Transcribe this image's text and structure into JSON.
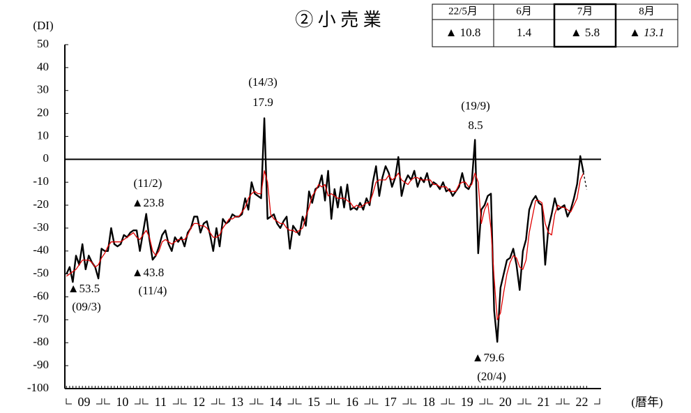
{
  "chart_data": {
    "type": "line",
    "title": "② 小 売 業",
    "y_label": "(DI)",
    "x_label": "(暦年)",
    "ylim": [
      -100,
      50
    ],
    "yticks": [
      50,
      40,
      30,
      20,
      10,
      0,
      -10,
      -20,
      -30,
      -40,
      -50,
      -60,
      -70,
      -80,
      -90,
      -100
    ],
    "reference_line": 0,
    "year_labels": [
      "09",
      "10",
      "11",
      "12",
      "13",
      "14",
      "15",
      "16",
      "17",
      "18",
      "19",
      "20",
      "21",
      "22"
    ],
    "x": [
      "09/1",
      "09/2",
      "09/3",
      "09/4",
      "09/5",
      "09/6",
      "09/7",
      "09/8",
      "09/9",
      "09/10",
      "09/11",
      "09/12",
      "10/1",
      "10/2",
      "10/3",
      "10/4",
      "10/5",
      "10/6",
      "10/7",
      "10/8",
      "10/9",
      "10/10",
      "10/11",
      "10/12",
      "11/1",
      "11/2",
      "11/3",
      "11/4",
      "11/5",
      "11/6",
      "11/7",
      "11/8",
      "11/9",
      "11/10",
      "11/11",
      "11/12",
      "12/1",
      "12/2",
      "12/3",
      "12/4",
      "12/5",
      "12/6",
      "12/7",
      "12/8",
      "12/9",
      "12/10",
      "12/11",
      "12/12",
      "13/1",
      "13/2",
      "13/3",
      "13/4",
      "13/5",
      "13/6",
      "13/7",
      "13/8",
      "13/9",
      "13/10",
      "13/11",
      "13/12",
      "14/1",
      "14/2",
      "14/3",
      "14/4",
      "14/5",
      "14/6",
      "14/7",
      "14/8",
      "14/9",
      "14/10",
      "14/11",
      "14/12",
      "15/1",
      "15/2",
      "15/3",
      "15/4",
      "15/5",
      "15/6",
      "15/7",
      "15/8",
      "15/9",
      "15/10",
      "15/11",
      "15/12",
      "16/1",
      "16/2",
      "16/3",
      "16/4",
      "16/5",
      "16/6",
      "16/7",
      "16/8",
      "16/9",
      "16/10",
      "16/11",
      "16/12",
      "17/1",
      "17/2",
      "17/3",
      "17/4",
      "17/5",
      "17/6",
      "17/7",
      "17/8",
      "17/9",
      "17/10",
      "17/11",
      "17/12",
      "18/1",
      "18/2",
      "18/3",
      "18/4",
      "18/5",
      "18/6",
      "18/7",
      "18/8",
      "18/9",
      "18/10",
      "18/11",
      "18/12",
      "19/1",
      "19/2",
      "19/3",
      "19/4",
      "19/5",
      "19/6",
      "19/7",
      "19/8",
      "19/9",
      "19/10",
      "19/11",
      "19/12",
      "20/1",
      "20/2",
      "20/3",
      "20/4",
      "20/5",
      "20/6",
      "20/7",
      "20/8",
      "20/9",
      "20/10",
      "20/11",
      "20/12",
      "21/1",
      "21/2",
      "21/3",
      "21/4",
      "21/5",
      "21/6",
      "21/7",
      "21/8",
      "21/9",
      "21/10",
      "21/11",
      "21/12",
      "22/1",
      "22/2",
      "22/3",
      "22/4",
      "22/5",
      "22/6",
      "22/7",
      "22/8"
    ],
    "series": [
      {
        "color": "#000000",
        "values": [
          -50,
          -47,
          -53.5,
          -42,
          -46,
          -37,
          -48,
          -42,
          -45,
          -47,
          -52,
          -39,
          -40,
          -40,
          -30,
          -37,
          -38,
          -37,
          -33,
          -34,
          -32,
          -31,
          -31,
          -40,
          -32,
          -23.8,
          -35,
          -43.8,
          -42,
          -38,
          -33,
          -31,
          -37,
          -40,
          -34,
          -36,
          -34,
          -38,
          -32,
          -30,
          -25,
          -25,
          -32,
          -28,
          -27,
          -33,
          -40,
          -30,
          -38,
          -26,
          -28,
          -27,
          -24,
          -25,
          -25,
          -24,
          -17,
          -22,
          -10,
          -15,
          -16,
          -17,
          17.9,
          -26,
          -25,
          -24,
          -28,
          -30,
          -27,
          -25,
          -39,
          -29,
          -31,
          -33,
          -25,
          -29,
          -14,
          -19,
          -13,
          -12,
          -7,
          -18,
          -5,
          -26,
          -13,
          -21,
          -12,
          -21,
          -11,
          -22,
          -21,
          -22,
          -19,
          -22,
          -17,
          -20,
          -10,
          -3,
          -16,
          -8,
          -3,
          -6,
          -12,
          -8,
          1,
          -16,
          -10,
          -7,
          -9,
          -5,
          -12,
          -8,
          -10,
          -6,
          -12,
          -10,
          -11,
          -13,
          -10,
          -14,
          -13,
          -16,
          -14,
          -12,
          -6,
          -12,
          -13,
          -10,
          8.5,
          -41,
          -22,
          -20,
          -16,
          -15,
          -66,
          -79.6,
          -56,
          -50,
          -44,
          -43,
          -39,
          -46,
          -57,
          -40,
          -35,
          -22,
          -18,
          -16,
          -19,
          -20,
          -46,
          -30,
          -24,
          -17,
          -22,
          -21,
          -20,
          -25,
          -22,
          -17,
          -10.8,
          1.4,
          -5.8,
          null
        ]
      },
      {
        "color": "#e00000",
        "values": [
          -51,
          -50,
          -49,
          -48,
          -46,
          -44,
          -44,
          -44,
          -45,
          -47,
          -46,
          -43,
          -41,
          -38,
          -36,
          -36,
          -36,
          -36,
          -35,
          -34,
          -33,
          -32,
          -34,
          -35,
          -33,
          -31,
          -34,
          -40,
          -42,
          -40,
          -36,
          -35,
          -36,
          -37,
          -36,
          -35,
          -35,
          -35,
          -33,
          -30,
          -28,
          -28,
          -29,
          -29,
          -30,
          -32,
          -34,
          -34,
          -33,
          -30,
          -28,
          -26,
          -26,
          -25,
          -25,
          -23,
          -21,
          -17,
          -15,
          -14,
          -15,
          -15,
          -5,
          -10,
          -24,
          -26,
          -27,
          -28,
          -28,
          -30,
          -31,
          -31,
          -32,
          -31,
          -30,
          -25,
          -21,
          -16,
          -14,
          -11,
          -12,
          -11,
          -16,
          -15,
          -16,
          -17,
          -17,
          -17,
          -18,
          -19,
          -21,
          -20,
          -21,
          -20,
          -19,
          -19,
          -15,
          -10,
          -9,
          -9,
          -9,
          -7,
          -9,
          -8,
          -6,
          -9,
          -10,
          -11,
          -9,
          -8,
          -8,
          -9,
          -9,
          -9,
          -9,
          -11,
          -11,
          -12,
          -12,
          -12,
          -14,
          -14,
          -14,
          -11,
          -10,
          -10,
          -12,
          -11,
          -6,
          -10,
          -28,
          -22,
          -19,
          -30,
          -52,
          -70,
          -67,
          -58,
          -50,
          -45,
          -42,
          -43,
          -47,
          -48,
          -44,
          -32,
          -25,
          -18,
          -18,
          -19,
          -28,
          -32,
          -33,
          -24,
          -20,
          -21,
          -21,
          -22,
          -23,
          -20,
          -17,
          -9,
          -6,
          null
        ]
      }
    ],
    "forecast": {
      "color": "#000000",
      "dashed": true,
      "x": [
        "22/7",
        "22/8"
      ],
      "values": [
        -5.8,
        -13.1
      ]
    },
    "annotations": [
      {
        "date": "(09/3)",
        "text": "▲53.5"
      },
      {
        "date": "(11/2)",
        "text": "▲23.8"
      },
      {
        "date": "(11/4)",
        "text": "▲43.8"
      },
      {
        "date": "(14/3)",
        "text": "17.9"
      },
      {
        "date": "(19/9)",
        "text": "8.5"
      },
      {
        "date": "(20/4)",
        "text": "▲79.6"
      }
    ]
  },
  "table": {
    "header": [
      "22/5月",
      "6月",
      "7月",
      "8月"
    ],
    "row": [
      "▲ 10.8",
      "1.4",
      "▲ 5.8",
      "▲ 13.1"
    ],
    "highlight_column": 2,
    "italic_column": 3
  }
}
